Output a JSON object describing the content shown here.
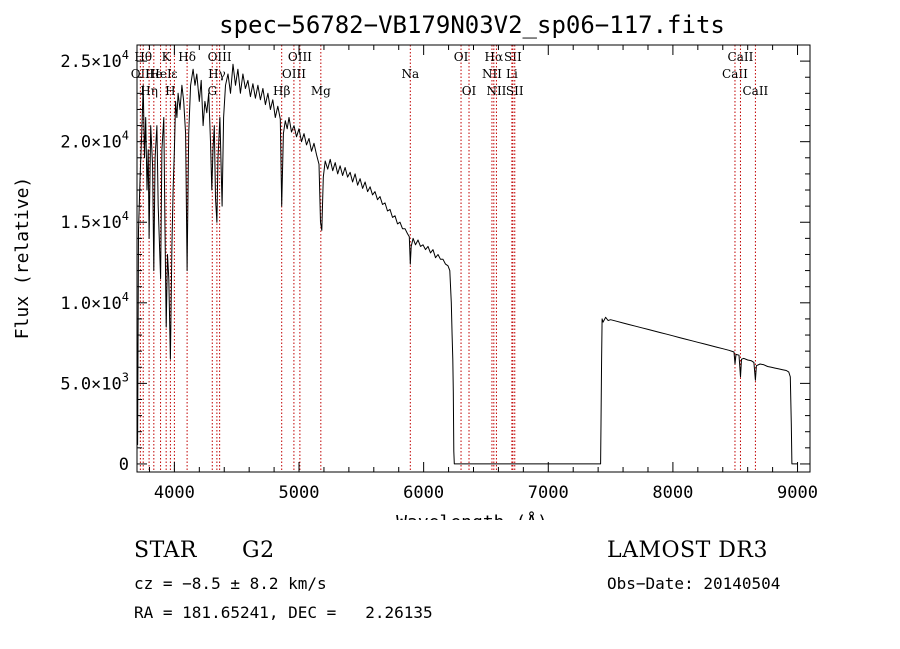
{
  "chart_data": {
    "type": "line",
    "title": "spec−56782−VB179N03V2_sp06−117.fits",
    "xlabel": "Wavelength (Å)",
    "ylabel": "Flux (relative)",
    "xlim": [
      3700,
      9100
    ],
    "ylim": [
      -500,
      26000
    ],
    "xticks": [
      {
        "value": 4000,
        "label": "4000"
      },
      {
        "value": 5000,
        "label": "5000"
      },
      {
        "value": 6000,
        "label": "6000"
      },
      {
        "value": 7000,
        "label": "7000"
      },
      {
        "value": 8000,
        "label": "8000"
      },
      {
        "value": 9000,
        "label": "9000"
      }
    ],
    "yticks": [
      {
        "value": 0,
        "mant": "0",
        "exp": ""
      },
      {
        "value": 5000,
        "mant": "5.0×10",
        "exp": "3"
      },
      {
        "value": 10000,
        "mant": "1.0×10",
        "exp": "4"
      },
      {
        "value": 15000,
        "mant": "1.5×10",
        "exp": "4"
      },
      {
        "value": 20000,
        "mant": "2.0×10",
        "exp": "4"
      },
      {
        "value": 25000,
        "mant": "2.5×10",
        "exp": "4"
      }
    ],
    "series": [
      {
        "name": "flux",
        "points": [
          [
            3700,
            500
          ],
          [
            3702,
            7500
          ],
          [
            3705,
            1200
          ],
          [
            3712,
            14500
          ],
          [
            3725,
            17800
          ],
          [
            3740,
            21000
          ],
          [
            3750,
            23500
          ],
          [
            3760,
            19000
          ],
          [
            3770,
            21500
          ],
          [
            3780,
            17000
          ],
          [
            3790,
            19500
          ],
          [
            3797,
            14000
          ],
          [
            3810,
            21000
          ],
          [
            3825,
            18500
          ],
          [
            3835,
            12000
          ],
          [
            3845,
            19000
          ],
          [
            3860,
            21000
          ],
          [
            3870,
            16000
          ],
          [
            3889,
            11500
          ],
          [
            3900,
            19500
          ],
          [
            3915,
            21500
          ],
          [
            3925,
            14500
          ],
          [
            3934,
            8500
          ],
          [
            3945,
            13000
          ],
          [
            3955,
            11500
          ],
          [
            3968,
            6500
          ],
          [
            3980,
            13500
          ],
          [
            3990,
            17000
          ],
          [
            4000,
            19500
          ],
          [
            4010,
            22500
          ],
          [
            4020,
            21500
          ],
          [
            4030,
            23000
          ],
          [
            4045,
            22000
          ],
          [
            4060,
            23500
          ],
          [
            4075,
            22500
          ],
          [
            4090,
            20500
          ],
          [
            4102,
            12000
          ],
          [
            4115,
            20500
          ],
          [
            4130,
            23500
          ],
          [
            4150,
            24500
          ],
          [
            4165,
            23500
          ],
          [
            4180,
            24200
          ],
          [
            4200,
            22500
          ],
          [
            4215,
            23800
          ],
          [
            4230,
            21000
          ],
          [
            4245,
            22500
          ],
          [
            4260,
            21800
          ],
          [
            4275,
            23000
          ],
          [
            4290,
            20000
          ],
          [
            4300,
            17000
          ],
          [
            4310,
            19500
          ],
          [
            4320,
            21000
          ],
          [
            4330,
            16500
          ],
          [
            4341,
            15000
          ],
          [
            4350,
            19000
          ],
          [
            4365,
            21500
          ],
          [
            4383,
            16000
          ],
          [
            4395,
            21500
          ],
          [
            4410,
            23500
          ],
          [
            4430,
            24200
          ],
          [
            4450,
            23000
          ],
          [
            4470,
            24800
          ],
          [
            4490,
            23500
          ],
          [
            4510,
            24500
          ],
          [
            4530,
            23000
          ],
          [
            4550,
            24200
          ],
          [
            4570,
            23300
          ],
          [
            4590,
            23800
          ],
          [
            4610,
            22800
          ],
          [
            4630,
            23600
          ],
          [
            4650,
            22700
          ],
          [
            4670,
            23500
          ],
          [
            4690,
            22600
          ],
          [
            4710,
            23300
          ],
          [
            4730,
            22300
          ],
          [
            4750,
            23000
          ],
          [
            4770,
            22000
          ],
          [
            4790,
            22600
          ],
          [
            4810,
            21500
          ],
          [
            4830,
            22200
          ],
          [
            4850,
            21400
          ],
          [
            4861,
            16000
          ],
          [
            4875,
            20500
          ],
          [
            4890,
            21300
          ],
          [
            4905,
            20800
          ],
          [
            4920,
            21500
          ],
          [
            4940,
            20600
          ],
          [
            4960,
            21000
          ],
          [
            4980,
            20300
          ],
          [
            5000,
            20800
          ],
          [
            5020,
            20000
          ],
          [
            5040,
            20500
          ],
          [
            5060,
            19800
          ],
          [
            5080,
            20200
          ],
          [
            5100,
            19400
          ],
          [
            5120,
            19900
          ],
          [
            5140,
            19200
          ],
          [
            5160,
            18600
          ],
          [
            5172,
            15000
          ],
          [
            5183,
            14500
          ],
          [
            5195,
            17800
          ],
          [
            5210,
            18800
          ],
          [
            5230,
            18300
          ],
          [
            5250,
            18900
          ],
          [
            5270,
            18200
          ],
          [
            5290,
            18700
          ],
          [
            5310,
            18000
          ],
          [
            5330,
            18500
          ],
          [
            5350,
            17900
          ],
          [
            5370,
            18400
          ],
          [
            5390,
            17800
          ],
          [
            5410,
            18100
          ],
          [
            5430,
            17500
          ],
          [
            5450,
            18000
          ],
          [
            5470,
            17300
          ],
          [
            5490,
            17700
          ],
          [
            5510,
            17100
          ],
          [
            5530,
            17500
          ],
          [
            5550,
            16900
          ],
          [
            5570,
            17200
          ],
          [
            5590,
            16700
          ],
          [
            5610,
            16900
          ],
          [
            5630,
            16400
          ],
          [
            5650,
            16600
          ],
          [
            5670,
            16100
          ],
          [
            5690,
            16200
          ],
          [
            5710,
            15700
          ],
          [
            5730,
            15800
          ],
          [
            5750,
            15300
          ],
          [
            5770,
            15400
          ],
          [
            5790,
            14900
          ],
          [
            5810,
            15000
          ],
          [
            5830,
            14600
          ],
          [
            5850,
            14600
          ],
          [
            5870,
            14300
          ],
          [
            5885,
            14100
          ],
          [
            5893,
            12400
          ],
          [
            5900,
            13500
          ],
          [
            5915,
            14000
          ],
          [
            5935,
            13600
          ],
          [
            5955,
            13900
          ],
          [
            5975,
            13500
          ],
          [
            5995,
            13600
          ],
          [
            6015,
            13300
          ],
          [
            6035,
            13500
          ],
          [
            6055,
            13100
          ],
          [
            6075,
            13300
          ],
          [
            6095,
            12800
          ],
          [
            6115,
            13000
          ],
          [
            6135,
            12700
          ],
          [
            6155,
            12700
          ],
          [
            6175,
            12400
          ],
          [
            6195,
            12300
          ],
          [
            6210,
            12000
          ],
          [
            6222,
            10000
          ],
          [
            6228,
            8000
          ],
          [
            6234,
            6500
          ],
          [
            6238,
            4500
          ],
          [
            6242,
            800
          ],
          [
            6246,
            0
          ],
          [
            6300,
            0
          ],
          [
            6500,
            0
          ],
          [
            6800,
            0
          ],
          [
            7100,
            0
          ],
          [
            7300,
            0
          ],
          [
            7420,
            0
          ],
          [
            7423,
            2500
          ],
          [
            7428,
            6500
          ],
          [
            7432,
            9000
          ],
          [
            7440,
            8800
          ],
          [
            7460,
            9100
          ],
          [
            7480,
            8900
          ],
          [
            7500,
            8950
          ],
          [
            7550,
            8850
          ],
          [
            7600,
            8750
          ],
          [
            7650,
            8650
          ],
          [
            7700,
            8550
          ],
          [
            7750,
            8450
          ],
          [
            7800,
            8350
          ],
          [
            7850,
            8250
          ],
          [
            7900,
            8150
          ],
          [
            7950,
            8050
          ],
          [
            8000,
            7950
          ],
          [
            8050,
            7850
          ],
          [
            8100,
            7750
          ],
          [
            8150,
            7650
          ],
          [
            8200,
            7550
          ],
          [
            8250,
            7450
          ],
          [
            8300,
            7350
          ],
          [
            8350,
            7250
          ],
          [
            8400,
            7150
          ],
          [
            8450,
            7050
          ],
          [
            8490,
            6950
          ],
          [
            8498,
            6200
          ],
          [
            8506,
            6800
          ],
          [
            8530,
            6750
          ],
          [
            8542,
            5400
          ],
          [
            8550,
            6500
          ],
          [
            8570,
            6550
          ],
          [
            8600,
            6450
          ],
          [
            8630,
            6400
          ],
          [
            8650,
            6300
          ],
          [
            8662,
            5200
          ],
          [
            8670,
            6100
          ],
          [
            8700,
            6200
          ],
          [
            8730,
            6150
          ],
          [
            8760,
            6050
          ],
          [
            8790,
            6000
          ],
          [
            8820,
            5950
          ],
          [
            8850,
            5900
          ],
          [
            8880,
            5850
          ],
          [
            8910,
            5800
          ],
          [
            8930,
            5700
          ],
          [
            8942,
            5400
          ],
          [
            8950,
            2500
          ],
          [
            8955,
            0
          ],
          [
            9000,
            0
          ]
        ]
      }
    ],
    "lines": [
      {
        "x": 3727,
        "label": "OII",
        "row": 2
      },
      {
        "x": 3750,
        "label": "Hθ",
        "row": 1
      },
      {
        "x": 3797,
        "label": "Hη",
        "row": 3
      },
      {
        "x": 3835,
        "label": "He",
        "row": 2
      },
      {
        "x": 3889,
        "label": "HeI",
        "row": 2
      },
      {
        "x": 3934,
        "label": "K",
        "row": 1
      },
      {
        "x": 3968,
        "label": "H",
        "row": 3
      },
      {
        "x": 4000,
        "label": "ε",
        "row": 2
      },
      {
        "x": 4102,
        "label": "Hδ",
        "row": 1
      },
      {
        "x": 4304,
        "label": "G",
        "row": 3
      },
      {
        "x": 4341,
        "label": "Hγ",
        "row": 2
      },
      {
        "x": 4363,
        "label": "OIII",
        "row": 1
      },
      {
        "x": 4861,
        "label": "Hβ",
        "row": 3
      },
      {
        "x": 4959,
        "label": "OIII",
        "row": 2
      },
      {
        "x": 5007,
        "label": "OIII",
        "row": 1
      },
      {
        "x": 5175,
        "label": "Mg",
        "row": 3
      },
      {
        "x": 5893,
        "label": "Na",
        "row": 2
      },
      {
        "x": 6300,
        "label": "OI",
        "row": 1
      },
      {
        "x": 6364,
        "label": "OI",
        "row": 3
      },
      {
        "x": 6548,
        "label": "NII",
        "row": 2
      },
      {
        "x": 6563,
        "label": "Hα",
        "row": 1
      },
      {
        "x": 6584,
        "label": "NII",
        "row": 3
      },
      {
        "x": 6708,
        "label": "Li",
        "row": 2
      },
      {
        "x": 6716,
        "label": "SII",
        "row": 1
      },
      {
        "x": 6731,
        "label": "SII",
        "row": 3
      },
      {
        "x": 8498,
        "label": "CaII",
        "row": 2
      },
      {
        "x": 8542,
        "label": "CaII",
        "row": 1
      },
      {
        "x": 8662,
        "label": "CaII",
        "row": 3
      }
    ]
  },
  "info": {
    "class": "STAR",
    "subclass": "G2",
    "survey": "LAMOST DR3",
    "cz": "cz = −8.5 ± 8.2 km/s",
    "obs_date": "Obs−Date: 20140504",
    "coords": "RA = 181.65241, DEC =   2.26135"
  }
}
